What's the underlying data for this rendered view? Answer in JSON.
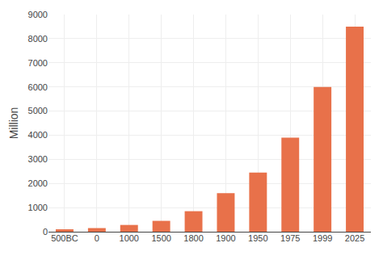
{
  "chart_data": {
    "type": "bar",
    "categories": [
      "500BC",
      "0",
      "1000",
      "1500",
      "1800",
      "1900",
      "1950",
      "1975",
      "1999",
      "2025"
    ],
    "values": [
      100,
      150,
      280,
      450,
      850,
      1600,
      2450,
      3900,
      6000,
      8500
    ],
    "color": "#E8714A",
    "ylabel": "Million",
    "ylim": [
      0,
      9000
    ],
    "yticks": [
      0,
      1000,
      2000,
      3000,
      4000,
      5000,
      6000,
      7000,
      8000,
      9000
    ],
    "grid": true
  }
}
